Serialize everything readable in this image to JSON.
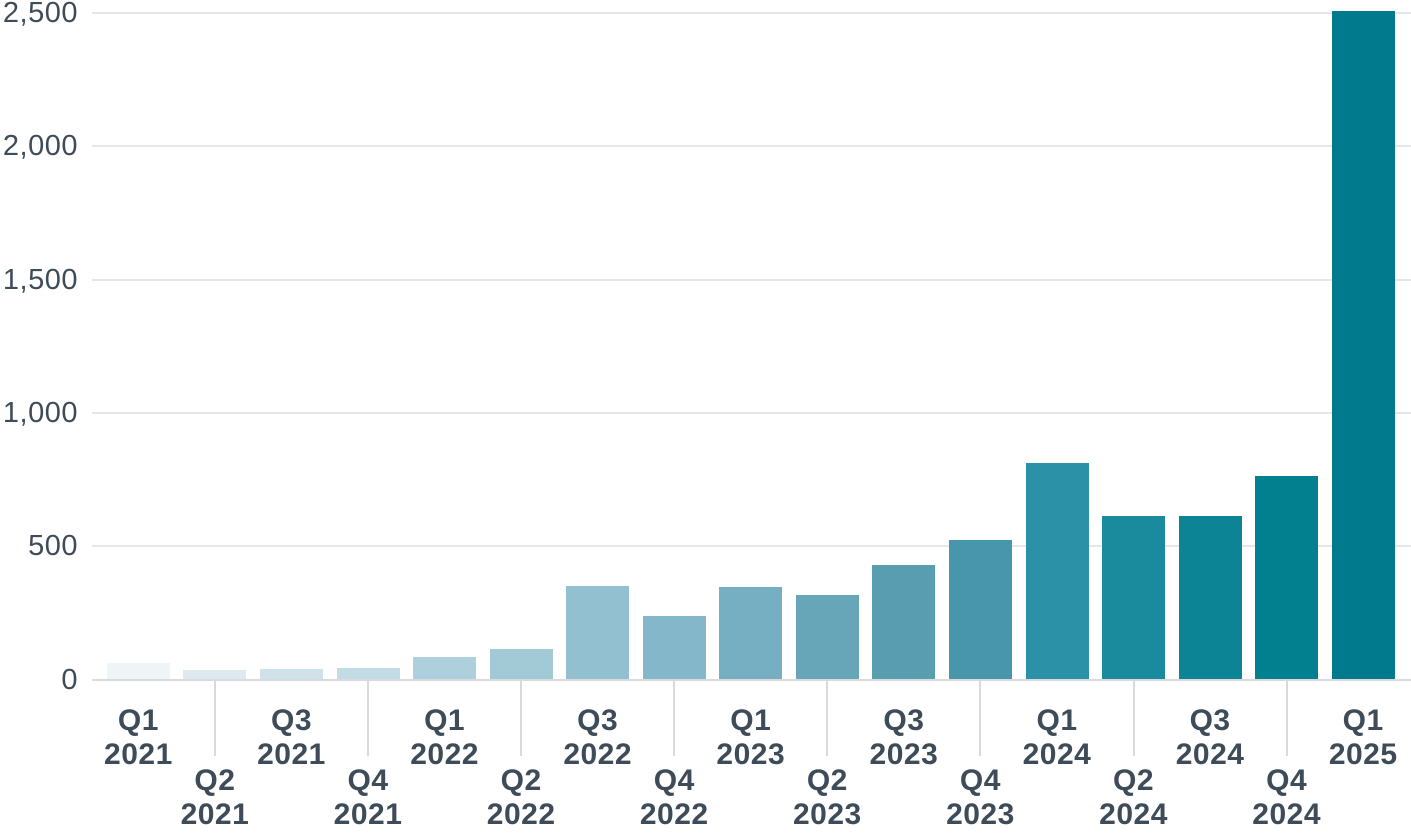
{
  "chart_data": {
    "type": "bar",
    "title": "",
    "xlabel": "",
    "ylabel": "",
    "categories": [
      "Q1 2021",
      "Q2 2021",
      "Q3 2021",
      "Q4 2021",
      "Q1 2022",
      "Q2 2022",
      "Q3 2022",
      "Q4 2022",
      "Q1 2023",
      "Q2 2023",
      "Q3 2023",
      "Q4 2023",
      "Q1 2024",
      "Q2 2024",
      "Q3 2024",
      "Q4 2024",
      "Q1 2025"
    ],
    "values": [
      62,
      35,
      39,
      45,
      85,
      113,
      350,
      238,
      347,
      318,
      430,
      522,
      813,
      612,
      615,
      764,
      2507
    ],
    "bar_colors": [
      "#eff4f6",
      "#ddeaef",
      "#cfe2e9",
      "#c2dbe4",
      "#aed0dc",
      "#a1c9d6",
      "#93c0d0",
      "#84b7c9",
      "#76aec2",
      "#67a5b9",
      "#599db1",
      "#4896ab",
      "#2b91a6",
      "#1a8a9d",
      "#0d8496",
      "#038090",
      "#007a8c"
    ],
    "ylim": [
      0,
      2510
    ],
    "y_ticks": [
      0,
      500,
      1000,
      1500,
      2000,
      2500
    ],
    "y_tick_labels": [
      "0",
      "500",
      "1,000",
      "1,500",
      "2,000",
      "2,500"
    ],
    "grid": "horizontal gridlines on",
    "legend": "none",
    "x_label_layout": "two-line labels (quarter over year), staggered: Q2/Q4 labels lowered with a vertical tick line at their bar",
    "colors": {
      "text": "#3e4c59",
      "gridline": "#e4e6e8",
      "axis_line": "#d8dade",
      "x_tick_line": "#d8dade",
      "background": "#ffffff"
    }
  }
}
